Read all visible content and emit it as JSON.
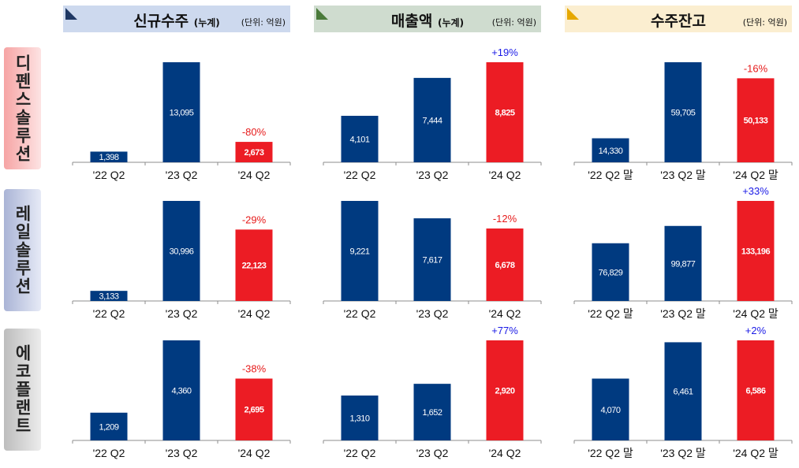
{
  "headers": [
    {
      "title": "신규수주",
      "suffix": "(누계)",
      "unit": "(단위: 억원)",
      "bg": "#cdd9ee",
      "tri": "#1f3864"
    },
    {
      "title": "매출액",
      "suffix": "(누계)",
      "unit": "(단위: 억원)",
      "bg": "#cfdccf",
      "tri": "#4a7a3a"
    },
    {
      "title": "수주잔고",
      "suffix": "",
      "unit": "(단위: 억원)",
      "bg": "#fbeed0",
      "tri": "#e6a800"
    }
  ],
  "rows": [
    {
      "label": "디펜스솔루션"
    },
    {
      "label": "레일솔루션"
    },
    {
      "label": "에코플랜트"
    }
  ],
  "colors": {
    "base": "#003a80",
    "current": "#ec1c24",
    "up": "#1a1ae6",
    "down": "#e61a1a"
  },
  "chart_data": [
    {
      "type": "bar",
      "row": "디펜스솔루션",
      "metric": "신규수주",
      "categories": [
        "'22 Q2",
        "'23 Q2",
        "'24 Q2"
      ],
      "values": [
        1398,
        13095,
        2673
      ],
      "labels": [
        "1,398",
        "13,095",
        "2,673"
      ],
      "change": "-80%"
    },
    {
      "type": "bar",
      "row": "디펜스솔루션",
      "metric": "매출액",
      "categories": [
        "'22 Q2",
        "'23 Q2",
        "'24 Q2"
      ],
      "values": [
        4101,
        7444,
        8825
      ],
      "labels": [
        "4,101",
        "7,444",
        "8,825"
      ],
      "change": "+19%"
    },
    {
      "type": "bar",
      "row": "디펜스솔루션",
      "metric": "수주잔고",
      "categories": [
        "'22 Q2 말",
        "'23 Q2 말",
        "'24 Q2 말"
      ],
      "values": [
        14330,
        59705,
        50133
      ],
      "labels": [
        "14,330",
        "59,705",
        "50,133"
      ],
      "change": "-16%"
    },
    {
      "type": "bar",
      "row": "레일솔루션",
      "metric": "신규수주",
      "categories": [
        "'22 Q2",
        "'23 Q2",
        "'24 Q2"
      ],
      "values": [
        3133,
        30996,
        22123
      ],
      "labels": [
        "3,133",
        "30,996",
        "22,123"
      ],
      "change": "-29%"
    },
    {
      "type": "bar",
      "row": "레일솔루션",
      "metric": "매출액",
      "categories": [
        "'22 Q2",
        "'23 Q2",
        "'24 Q2"
      ],
      "values": [
        9221,
        7617,
        6678
      ],
      "labels": [
        "9,221",
        "7,617",
        "6,678"
      ],
      "change": "-12%"
    },
    {
      "type": "bar",
      "row": "레일솔루션",
      "metric": "수주잔고",
      "categories": [
        "'22 Q2 말",
        "'23 Q2 말",
        "'24 Q2 말"
      ],
      "values": [
        76829,
        99877,
        133196
      ],
      "labels": [
        "76,829",
        "99,877",
        "133,196"
      ],
      "change": "+33%"
    },
    {
      "type": "bar",
      "row": "에코플랜트",
      "metric": "신규수주",
      "categories": [
        "'22 Q2",
        "'23 Q2",
        "'24 Q2"
      ],
      "values": [
        1209,
        4360,
        2695
      ],
      "labels": [
        "1,209",
        "4,360",
        "2,695"
      ],
      "change": "-38%"
    },
    {
      "type": "bar",
      "row": "에코플랜트",
      "metric": "매출액",
      "categories": [
        "'22 Q2",
        "'23 Q2",
        "'24 Q2"
      ],
      "values": [
        1310,
        1652,
        2920
      ],
      "labels": [
        "1,310",
        "1,652",
        "2,920"
      ],
      "change": "+77%"
    },
    {
      "type": "bar",
      "row": "에코플랜트",
      "metric": "수주잔고",
      "categories": [
        "'22 Q2 말",
        "'23 Q2 말",
        "'24 Q2 말"
      ],
      "values": [
        4070,
        6461,
        6586
      ],
      "labels": [
        "4,070",
        "6,461",
        "6,586"
      ],
      "change": "+2%"
    }
  ]
}
